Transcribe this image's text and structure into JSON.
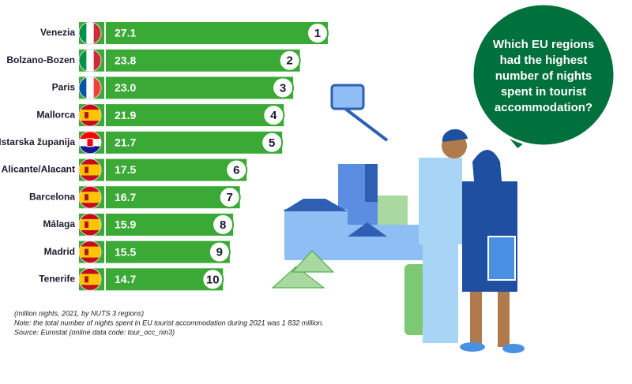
{
  "chart_data": {
    "type": "bar",
    "categories": [
      "Venezia",
      "Bolzano-Bozen",
      "Paris",
      "Mallorca",
      "Istarska županija",
      "Alicante/Alacant",
      "Barcelona",
      "Málaga",
      "Madrid",
      "Tenerife"
    ],
    "values": [
      27.1,
      23.8,
      23.0,
      21.9,
      21.7,
      17.5,
      16.7,
      15.9,
      15.5,
      14.7
    ],
    "value_labels": [
      "27.1",
      "23.8",
      "23.0",
      "21.9",
      "21.7",
      "17.5",
      "16.7",
      "15.9",
      "15.5",
      "14.7"
    ],
    "ranks": [
      1,
      2,
      3,
      4,
      5,
      6,
      7,
      8,
      9,
      10
    ],
    "color": "#3aa935",
    "notes": [
      "(million nights, 2021, by NUTS 3 regions)",
      "Note: the total number of nights spent in EU tourist accommodation during 2021 was 1 832 million.",
      "Source: Eurostat (online data code: tour_occ_nin3)"
    ],
    "question": [
      "Which EU regions",
      "had the highest",
      "number of nights",
      "spent in tourist",
      "accommodation?"
    ]
  }
}
